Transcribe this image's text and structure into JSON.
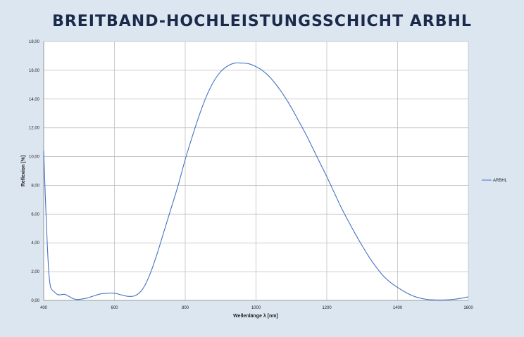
{
  "title": "BREITBAND-HOCHLEISTUNGSSCHICHT ARBHL",
  "colors": {
    "background": "#dce6f1",
    "plot_background": "#ffffff",
    "series": "#4472c4",
    "title": "#1b2a4a",
    "grid": "#bfbfbf"
  },
  "chart_data": {
    "type": "line",
    "title": "",
    "xlabel": "Wellenlänge λ [nm]",
    "ylabel": "Reflexion [%]",
    "xlim": [
      400,
      1600
    ],
    "ylim": [
      0,
      18
    ],
    "xticks": [
      400,
      600,
      800,
      1000,
      1200,
      1400,
      1600
    ],
    "xtick_labels": [
      "400",
      "600",
      "800",
      "1000",
      "1200",
      "1400",
      "1600"
    ],
    "yticks": [
      0,
      2,
      4,
      6,
      8,
      10,
      12,
      14,
      16,
      18
    ],
    "ytick_labels": [
      "0,00",
      "2,00",
      "4,00",
      "6,00",
      "8,00",
      "10,00",
      "12,00",
      "14,00",
      "16,00",
      "18,00"
    ],
    "grid": "vertical and horizontal major gridlines",
    "legend": "right",
    "series": [
      {
        "name": "ARBHL",
        "x": [
          400,
          405,
          410,
          415,
          420,
          430,
          440,
          450,
          460,
          470,
          480,
          490,
          500,
          520,
          540,
          560,
          580,
          600,
          620,
          640,
          660,
          680,
          700,
          720,
          740,
          760,
          780,
          800,
          820,
          840,
          860,
          880,
          900,
          920,
          940,
          960,
          980,
          1000,
          1020,
          1040,
          1060,
          1080,
          1100,
          1120,
          1140,
          1160,
          1180,
          1200,
          1220,
          1240,
          1260,
          1280,
          1300,
          1320,
          1340,
          1360,
          1380,
          1400,
          1420,
          1440,
          1460,
          1480,
          1500,
          1520,
          1540,
          1560,
          1580,
          1600
        ],
        "y": [
          10.4,
          7.0,
          4.0,
          1.8,
          0.9,
          0.6,
          0.4,
          0.4,
          0.42,
          0.3,
          0.15,
          0.08,
          0.07,
          0.15,
          0.3,
          0.45,
          0.5,
          0.5,
          0.38,
          0.28,
          0.35,
          0.8,
          1.8,
          3.2,
          4.8,
          6.4,
          8.0,
          9.8,
          11.4,
          12.9,
          14.2,
          15.2,
          15.9,
          16.3,
          16.5,
          16.5,
          16.45,
          16.25,
          15.95,
          15.5,
          14.9,
          14.2,
          13.4,
          12.5,
          11.6,
          10.6,
          9.6,
          8.6,
          7.55,
          6.5,
          5.55,
          4.65,
          3.8,
          3.0,
          2.3,
          1.7,
          1.25,
          0.9,
          0.6,
          0.35,
          0.18,
          0.08,
          0.04,
          0.03,
          0.04,
          0.08,
          0.15,
          0.25
        ]
      }
    ]
  }
}
